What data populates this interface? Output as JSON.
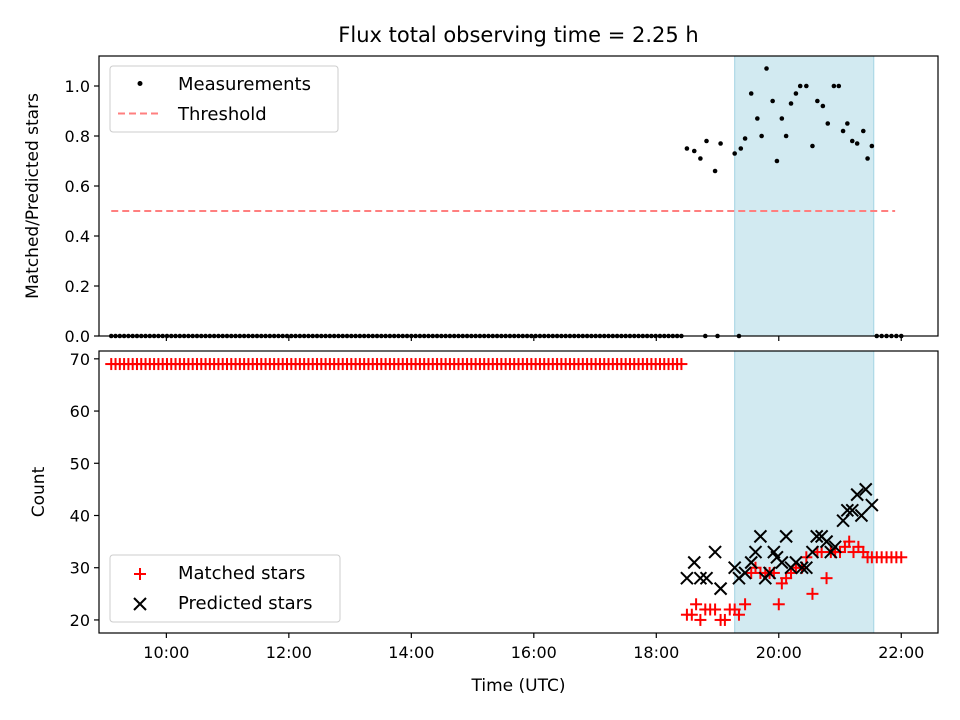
{
  "chart_data": [
    {
      "type": "scatter",
      "title": "Flux total observing time = 2.25 h",
      "ylabel": "Matched/Predicted stars",
      "xlabel": "",
      "xlim": [
        8.9,
        22.6
      ],
      "ylim": [
        0.0,
        1.12
      ],
      "yticks": [
        0.0,
        0.2,
        0.4,
        0.6,
        0.8,
        1.0
      ],
      "ytick_labels": [
        "0.0",
        "0.2",
        "0.4",
        "0.6",
        "0.8",
        "1.0"
      ],
      "xticks": [
        10,
        12,
        14,
        16,
        18,
        20,
        22
      ],
      "show_x_tick_labels": false,
      "shaded_interval": [
        19.28,
        21.55
      ],
      "shade_color": "#add8e6",
      "legend": {
        "position": "top-left",
        "entries": [
          "Measurements",
          "Threshold"
        ]
      },
      "series": [
        {
          "name": "Measurements",
          "marker": "dot",
          "color": "#000000",
          "zero_run": {
            "start": 9.1,
            "end": 18.45,
            "step": 0.07,
            "value": 0.0
          },
          "points": [
            [
              18.8,
              0.0
            ],
            [
              19.0,
              0.0
            ],
            [
              19.35,
              0.0
            ],
            [
              21.6,
              0.0
            ],
            [
              21.68,
              0.0
            ],
            [
              21.76,
              0.0
            ],
            [
              21.84,
              0.0
            ],
            [
              21.92,
              0.0
            ],
            [
              22.0,
              0.0
            ],
            [
              18.5,
              0.75
            ],
            [
              18.62,
              0.74
            ],
            [
              18.72,
              0.71
            ],
            [
              18.82,
              0.78
            ],
            [
              18.96,
              0.66
            ],
            [
              19.05,
              0.77
            ],
            [
              19.28,
              0.73
            ],
            [
              19.38,
              0.75
            ],
            [
              19.45,
              0.79
            ],
            [
              19.55,
              0.97
            ],
            [
              19.65,
              0.87
            ],
            [
              19.72,
              0.8
            ],
            [
              19.8,
              1.07
            ],
            [
              19.9,
              0.94
            ],
            [
              19.97,
              0.7
            ],
            [
              20.05,
              0.87
            ],
            [
              20.12,
              0.8
            ],
            [
              20.2,
              0.93
            ],
            [
              20.28,
              0.97
            ],
            [
              20.35,
              1.0
            ],
            [
              20.45,
              1.0
            ],
            [
              20.55,
              0.76
            ],
            [
              20.63,
              0.94
            ],
            [
              20.72,
              0.92
            ],
            [
              20.8,
              0.85
            ],
            [
              20.9,
              1.0
            ],
            [
              20.98,
              1.0
            ],
            [
              21.05,
              0.82
            ],
            [
              21.12,
              0.85
            ],
            [
              21.2,
              0.78
            ],
            [
              21.28,
              0.77
            ],
            [
              21.38,
              0.82
            ],
            [
              21.45,
              0.71
            ],
            [
              21.52,
              0.76
            ]
          ]
        },
        {
          "name": "Threshold",
          "type": "line",
          "style": "dashed",
          "color": "#ff7f7f",
          "x": [
            9.1,
            21.9
          ],
          "y": [
            0.5,
            0.5
          ]
        }
      ]
    },
    {
      "type": "scatter",
      "title": "",
      "ylabel": "Count",
      "xlabel": "Time (UTC)",
      "xlim": [
        8.9,
        22.6
      ],
      "ylim": [
        17.5,
        71.5
      ],
      "yticks": [
        20,
        30,
        40,
        50,
        60,
        70
      ],
      "ytick_labels": [
        "20",
        "30",
        "40",
        "50",
        "60",
        "70"
      ],
      "xticks": [
        10,
        12,
        14,
        16,
        18,
        20,
        22
      ],
      "xtick_labels": [
        "10:00",
        "12:00",
        "14:00",
        "16:00",
        "18:00",
        "20:00",
        "22:00"
      ],
      "shaded_interval": [
        19.28,
        21.55
      ],
      "shade_color": "#add8e6",
      "legend": {
        "position": "lower-left",
        "entries": [
          "Matched stars",
          "Predicted stars"
        ]
      },
      "series": [
        {
          "name": "Matched stars",
          "marker": "plus",
          "color": "#ff0000",
          "constant_run": {
            "start": 9.1,
            "end": 18.45,
            "step": 0.07,
            "value": 69
          },
          "points": [
            [
              18.5,
              21
            ],
            [
              18.58,
              21
            ],
            [
              18.65,
              23
            ],
            [
              18.72,
              20
            ],
            [
              18.8,
              22
            ],
            [
              18.88,
              22
            ],
            [
              18.96,
              22
            ],
            [
              19.05,
              20
            ],
            [
              19.12,
              20
            ],
            [
              19.2,
              22
            ],
            [
              19.28,
              22
            ],
            [
              19.35,
              21
            ],
            [
              19.45,
              23
            ],
            [
              19.55,
              29
            ],
            [
              19.62,
              30
            ],
            [
              19.7,
              29
            ],
            [
              19.78,
              29
            ],
            [
              19.85,
              29
            ],
            [
              19.92,
              29
            ],
            [
              20.0,
              23
            ],
            [
              20.05,
              27
            ],
            [
              20.12,
              28
            ],
            [
              20.2,
              29
            ],
            [
              20.28,
              30
            ],
            [
              20.38,
              30
            ],
            [
              20.45,
              32
            ],
            [
              20.55,
              25
            ],
            [
              20.63,
              33
            ],
            [
              20.7,
              33
            ],
            [
              20.78,
              28
            ],
            [
              20.85,
              33
            ],
            [
              20.92,
              33
            ],
            [
              21.0,
              33
            ],
            [
              21.08,
              34
            ],
            [
              21.15,
              35
            ],
            [
              21.22,
              33
            ],
            [
              21.3,
              34
            ],
            [
              21.38,
              33
            ],
            [
              21.45,
              32
            ],
            [
              21.52,
              32
            ],
            [
              21.6,
              32
            ],
            [
              21.68,
              32
            ],
            [
              21.76,
              32
            ],
            [
              21.84,
              32
            ],
            [
              21.92,
              32
            ],
            [
              22.0,
              32
            ]
          ]
        },
        {
          "name": "Predicted stars",
          "marker": "x",
          "color": "#000000",
          "points": [
            [
              18.5,
              28
            ],
            [
              18.62,
              31
            ],
            [
              18.72,
              28
            ],
            [
              18.82,
              28
            ],
            [
              18.96,
              33
            ],
            [
              19.05,
              26
            ],
            [
              19.28,
              30
            ],
            [
              19.35,
              28
            ],
            [
              19.45,
              29
            ],
            [
              19.55,
              31
            ],
            [
              19.62,
              33
            ],
            [
              19.7,
              36
            ],
            [
              19.78,
              28
            ],
            [
              19.85,
              29
            ],
            [
              19.92,
              33
            ],
            [
              19.97,
              32
            ],
            [
              20.05,
              31
            ],
            [
              20.12,
              36
            ],
            [
              20.2,
              30
            ],
            [
              20.28,
              31
            ],
            [
              20.38,
              30
            ],
            [
              20.45,
              30
            ],
            [
              20.55,
              33
            ],
            [
              20.62,
              36
            ],
            [
              20.7,
              36
            ],
            [
              20.78,
              35
            ],
            [
              20.85,
              33
            ],
            [
              20.92,
              34
            ],
            [
              21.05,
              39
            ],
            [
              21.12,
              41
            ],
            [
              21.2,
              41
            ],
            [
              21.28,
              44
            ],
            [
              21.35,
              40
            ],
            [
              21.42,
              45
            ],
            [
              21.52,
              42
            ]
          ]
        }
      ]
    }
  ]
}
